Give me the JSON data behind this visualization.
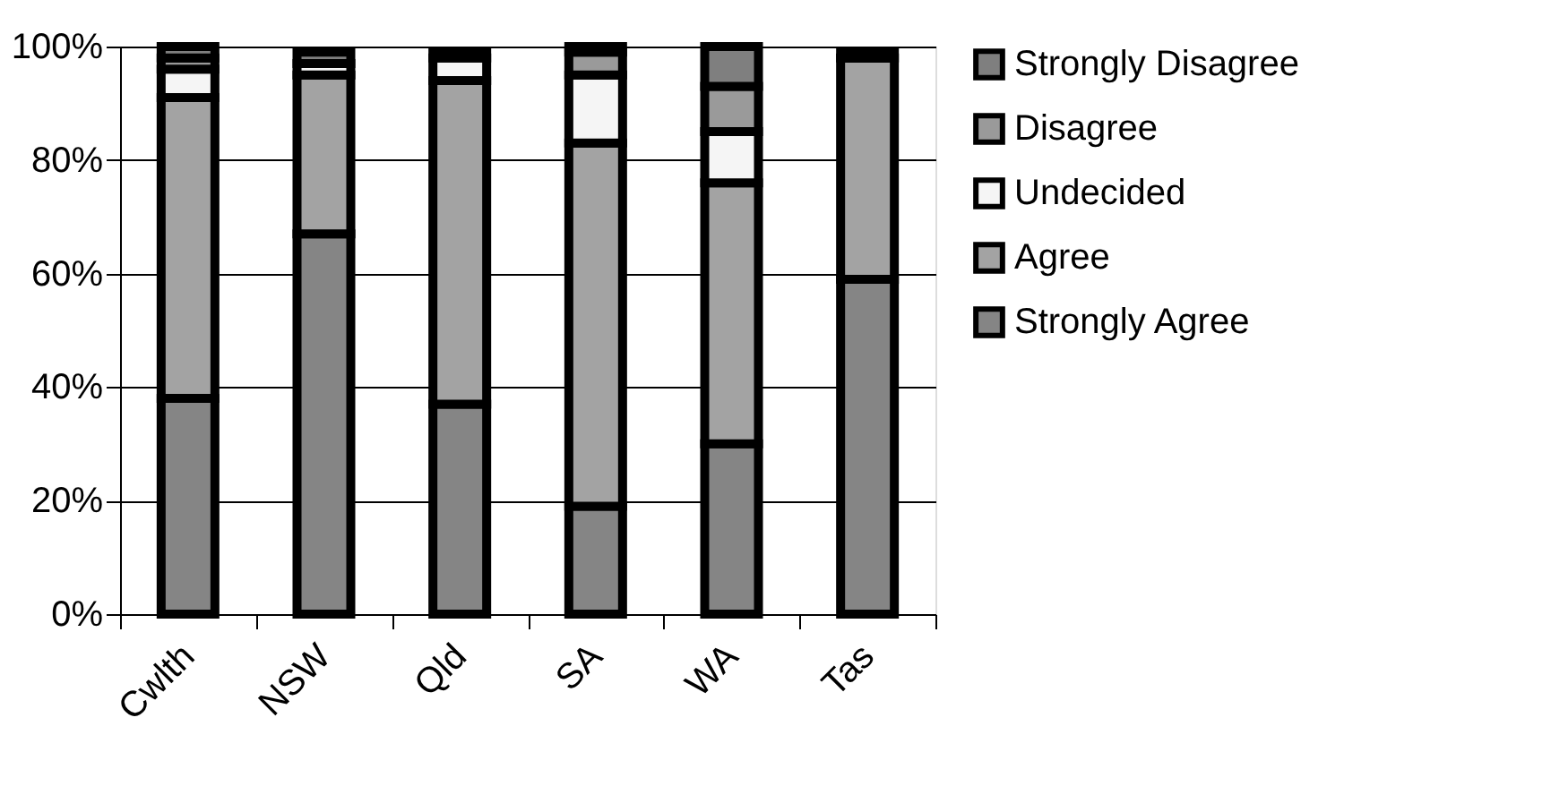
{
  "chart_data": {
    "type": "bar",
    "stacked": true,
    "categories": [
      "Cwlth",
      "NSW",
      "Qld",
      "SA",
      "WA",
      "Tas"
    ],
    "series": [
      {
        "name": "Strongly Agree",
        "color": "#858585",
        "values": [
          38,
          67,
          37,
          19,
          30,
          59
        ]
      },
      {
        "name": "Agree",
        "color": "#a3a3a3",
        "values": [
          53,
          28,
          57,
          64,
          46,
          39
        ]
      },
      {
        "name": "Undecided",
        "color": "#f5f5f5",
        "values": [
          5,
          2,
          4,
          12,
          9,
          0
        ]
      },
      {
        "name": "Disagree",
        "color": "#9a9a9a",
        "values": [
          2,
          null,
          null,
          4,
          8,
          null
        ]
      },
      {
        "name": "Strongly Disagree",
        "color": "#7f7f7f",
        "values": [
          2,
          2,
          1,
          1,
          7,
          1
        ]
      }
    ],
    "ylim": [
      0,
      100
    ],
    "yticks": [
      {
        "value": 0,
        "label": "0%"
      },
      {
        "value": 20,
        "label": "20%"
      },
      {
        "value": 40,
        "label": "40%"
      },
      {
        "value": 60,
        "label": "60%"
      },
      {
        "value": 80,
        "label": "80%"
      },
      {
        "value": 100,
        "label": "100%"
      }
    ],
    "grid": "y",
    "legend": "right"
  }
}
